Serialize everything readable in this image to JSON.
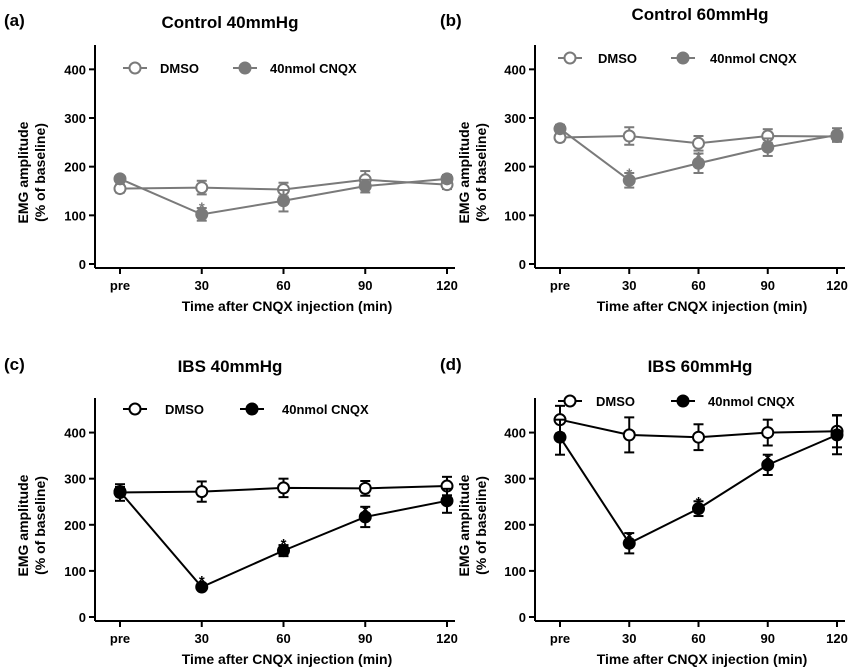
{
  "figure": {
    "background": "#ffffff"
  },
  "chart_data": [
    {
      "panel_label": "(a)",
      "title": "Control 40mmHg",
      "type": "line",
      "xlabel": "Time after CNQX injection (min)",
      "ylabel_line1": "EMG amplitude",
      "ylabel_line2": "(% of baseline)",
      "categories": [
        "pre",
        "30",
        "60",
        "90",
        "120"
      ],
      "ylim": [
        0,
        450
      ],
      "yticks": [
        0,
        100,
        200,
        300,
        400
      ],
      "legend_position": "top",
      "grid": false,
      "series": [
        {
          "name": "DMSO",
          "color": "#7a7a7a",
          "marker": "open-circle",
          "values": [
            155,
            157,
            153,
            173,
            163
          ],
          "error": [
            8,
            14,
            14,
            18,
            9
          ]
        },
        {
          "name": "40nmol CNQX",
          "color": "#7a7a7a",
          "marker": "filled-circle",
          "values": [
            175,
            102,
            130,
            160,
            175
          ],
          "error": [
            6,
            13,
            22,
            13,
            8
          ]
        }
      ],
      "significance": [
        {
          "category": "30",
          "label": "*",
          "y": 118
        }
      ]
    },
    {
      "panel_label": "(b)",
      "title": "Control 60mmHg",
      "type": "line",
      "xlabel": "Time after CNQX injection (min)",
      "ylabel_line1": "EMG amplitude",
      "ylabel_line2": "(% of baseline)",
      "categories": [
        "pre",
        "30",
        "60",
        "90",
        "120"
      ],
      "ylim": [
        0,
        450
      ],
      "yticks": [
        0,
        100,
        200,
        300,
        400
      ],
      "legend_position": "top",
      "grid": false,
      "series": [
        {
          "name": "DMSO",
          "color": "#7a7a7a",
          "marker": "open-circle",
          "values": [
            260,
            263,
            248,
            263,
            262
          ],
          "error": [
            8,
            18,
            15,
            14,
            10
          ]
        },
        {
          "name": "40nmol CNQX",
          "color": "#7a7a7a",
          "marker": "filled-circle",
          "values": [
            278,
            172,
            207,
            240,
            265
          ],
          "error": [
            8,
            15,
            20,
            18,
            14
          ]
        }
      ],
      "significance": [
        {
          "category": "30",
          "label": "*",
          "y": 188
        },
        {
          "category": "60",
          "label": "*",
          "y": 222
        }
      ]
    },
    {
      "panel_label": "(c)",
      "title": "IBS 40mmHg",
      "type": "line",
      "xlabel": "Time after CNQX injection (min)",
      "ylabel_line1": "EMG amplitude",
      "ylabel_line2": "(% of baseline)",
      "categories": [
        "pre",
        "30",
        "60",
        "90",
        "120"
      ],
      "ylim": [
        0,
        475
      ],
      "yticks": [
        0,
        100,
        200,
        300,
        400
      ],
      "legend_position": "top",
      "grid": false,
      "series": [
        {
          "name": "DMSO",
          "color": "#000000",
          "marker": "open-circle",
          "values": [
            270,
            272,
            280,
            279,
            284
          ],
          "error": [
            18,
            22,
            20,
            16,
            20
          ]
        },
        {
          "name": "40nmol CNQX",
          "color": "#000000",
          "marker": "filled-circle",
          "values": [
            272,
            65,
            144,
            217,
            252
          ],
          "error": [
            10,
            6,
            12,
            22,
            26
          ]
        }
      ],
      "significance": [
        {
          "category": "30",
          "label": "*",
          "y": 80
        },
        {
          "category": "60",
          "label": "*",
          "y": 160
        },
        {
          "category": "90",
          "label": "*",
          "y": 232
        }
      ]
    },
    {
      "panel_label": "(d)",
      "title": "IBS 60mmHg",
      "type": "line",
      "xlabel": "Time after CNQX injection (min)",
      "ylabel_line1": "EMG amplitude",
      "ylabel_line2": "(% of baseline)",
      "categories": [
        "pre",
        "30",
        "60",
        "90",
        "120"
      ],
      "ylim": [
        0,
        475
      ],
      "yticks": [
        0,
        100,
        200,
        300,
        400
      ],
      "legend_position": "top",
      "grid": false,
      "series": [
        {
          "name": "DMSO",
          "color": "#000000",
          "marker": "open-circle",
          "values": [
            428,
            395,
            390,
            400,
            403
          ],
          "error": [
            30,
            38,
            28,
            28,
            35
          ]
        },
        {
          "name": "40nmol CNQX",
          "color": "#000000",
          "marker": "filled-circle",
          "values": [
            390,
            160,
            235,
            330,
            395
          ],
          "error": [
            38,
            22,
            16,
            22,
            42
          ]
        }
      ],
      "significance": [
        {
          "category": "30",
          "label": "*",
          "y": 176
        },
        {
          "category": "60",
          "label": "*",
          "y": 252
        },
        {
          "category": "90",
          "label": "*",
          "y": 345
        }
      ]
    }
  ]
}
